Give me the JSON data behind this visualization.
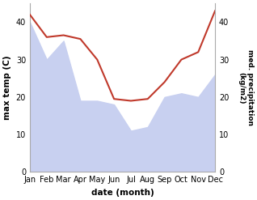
{
  "months": [
    "Jan",
    "Feb",
    "Mar",
    "Apr",
    "May",
    "Jun",
    "Jul",
    "Aug",
    "Sep",
    "Oct",
    "Nov",
    "Dec"
  ],
  "max_temp": [
    42,
    36,
    36.5,
    35.5,
    30,
    19.5,
    19,
    19.5,
    24,
    30,
    32,
    43
  ],
  "precipitation": [
    40,
    30,
    35,
    19,
    19,
    18,
    11,
    12,
    20,
    21,
    20,
    26
  ],
  "temp_color": "#c0392b",
  "precip_fill_color": "#c8d0f0",
  "temp_ylim": [
    0,
    45
  ],
  "precip_ylim": [
    0,
    45
  ],
  "temp_yticks": [
    0,
    10,
    20,
    30,
    40
  ],
  "precip_yticks": [
    0,
    10,
    20,
    30,
    40
  ],
  "xlabel": "date (month)",
  "ylabel_left": "max temp (C)",
  "ylabel_right": "med. precipitation\n(kg/m2)",
  "bg_color": "#ffffff"
}
